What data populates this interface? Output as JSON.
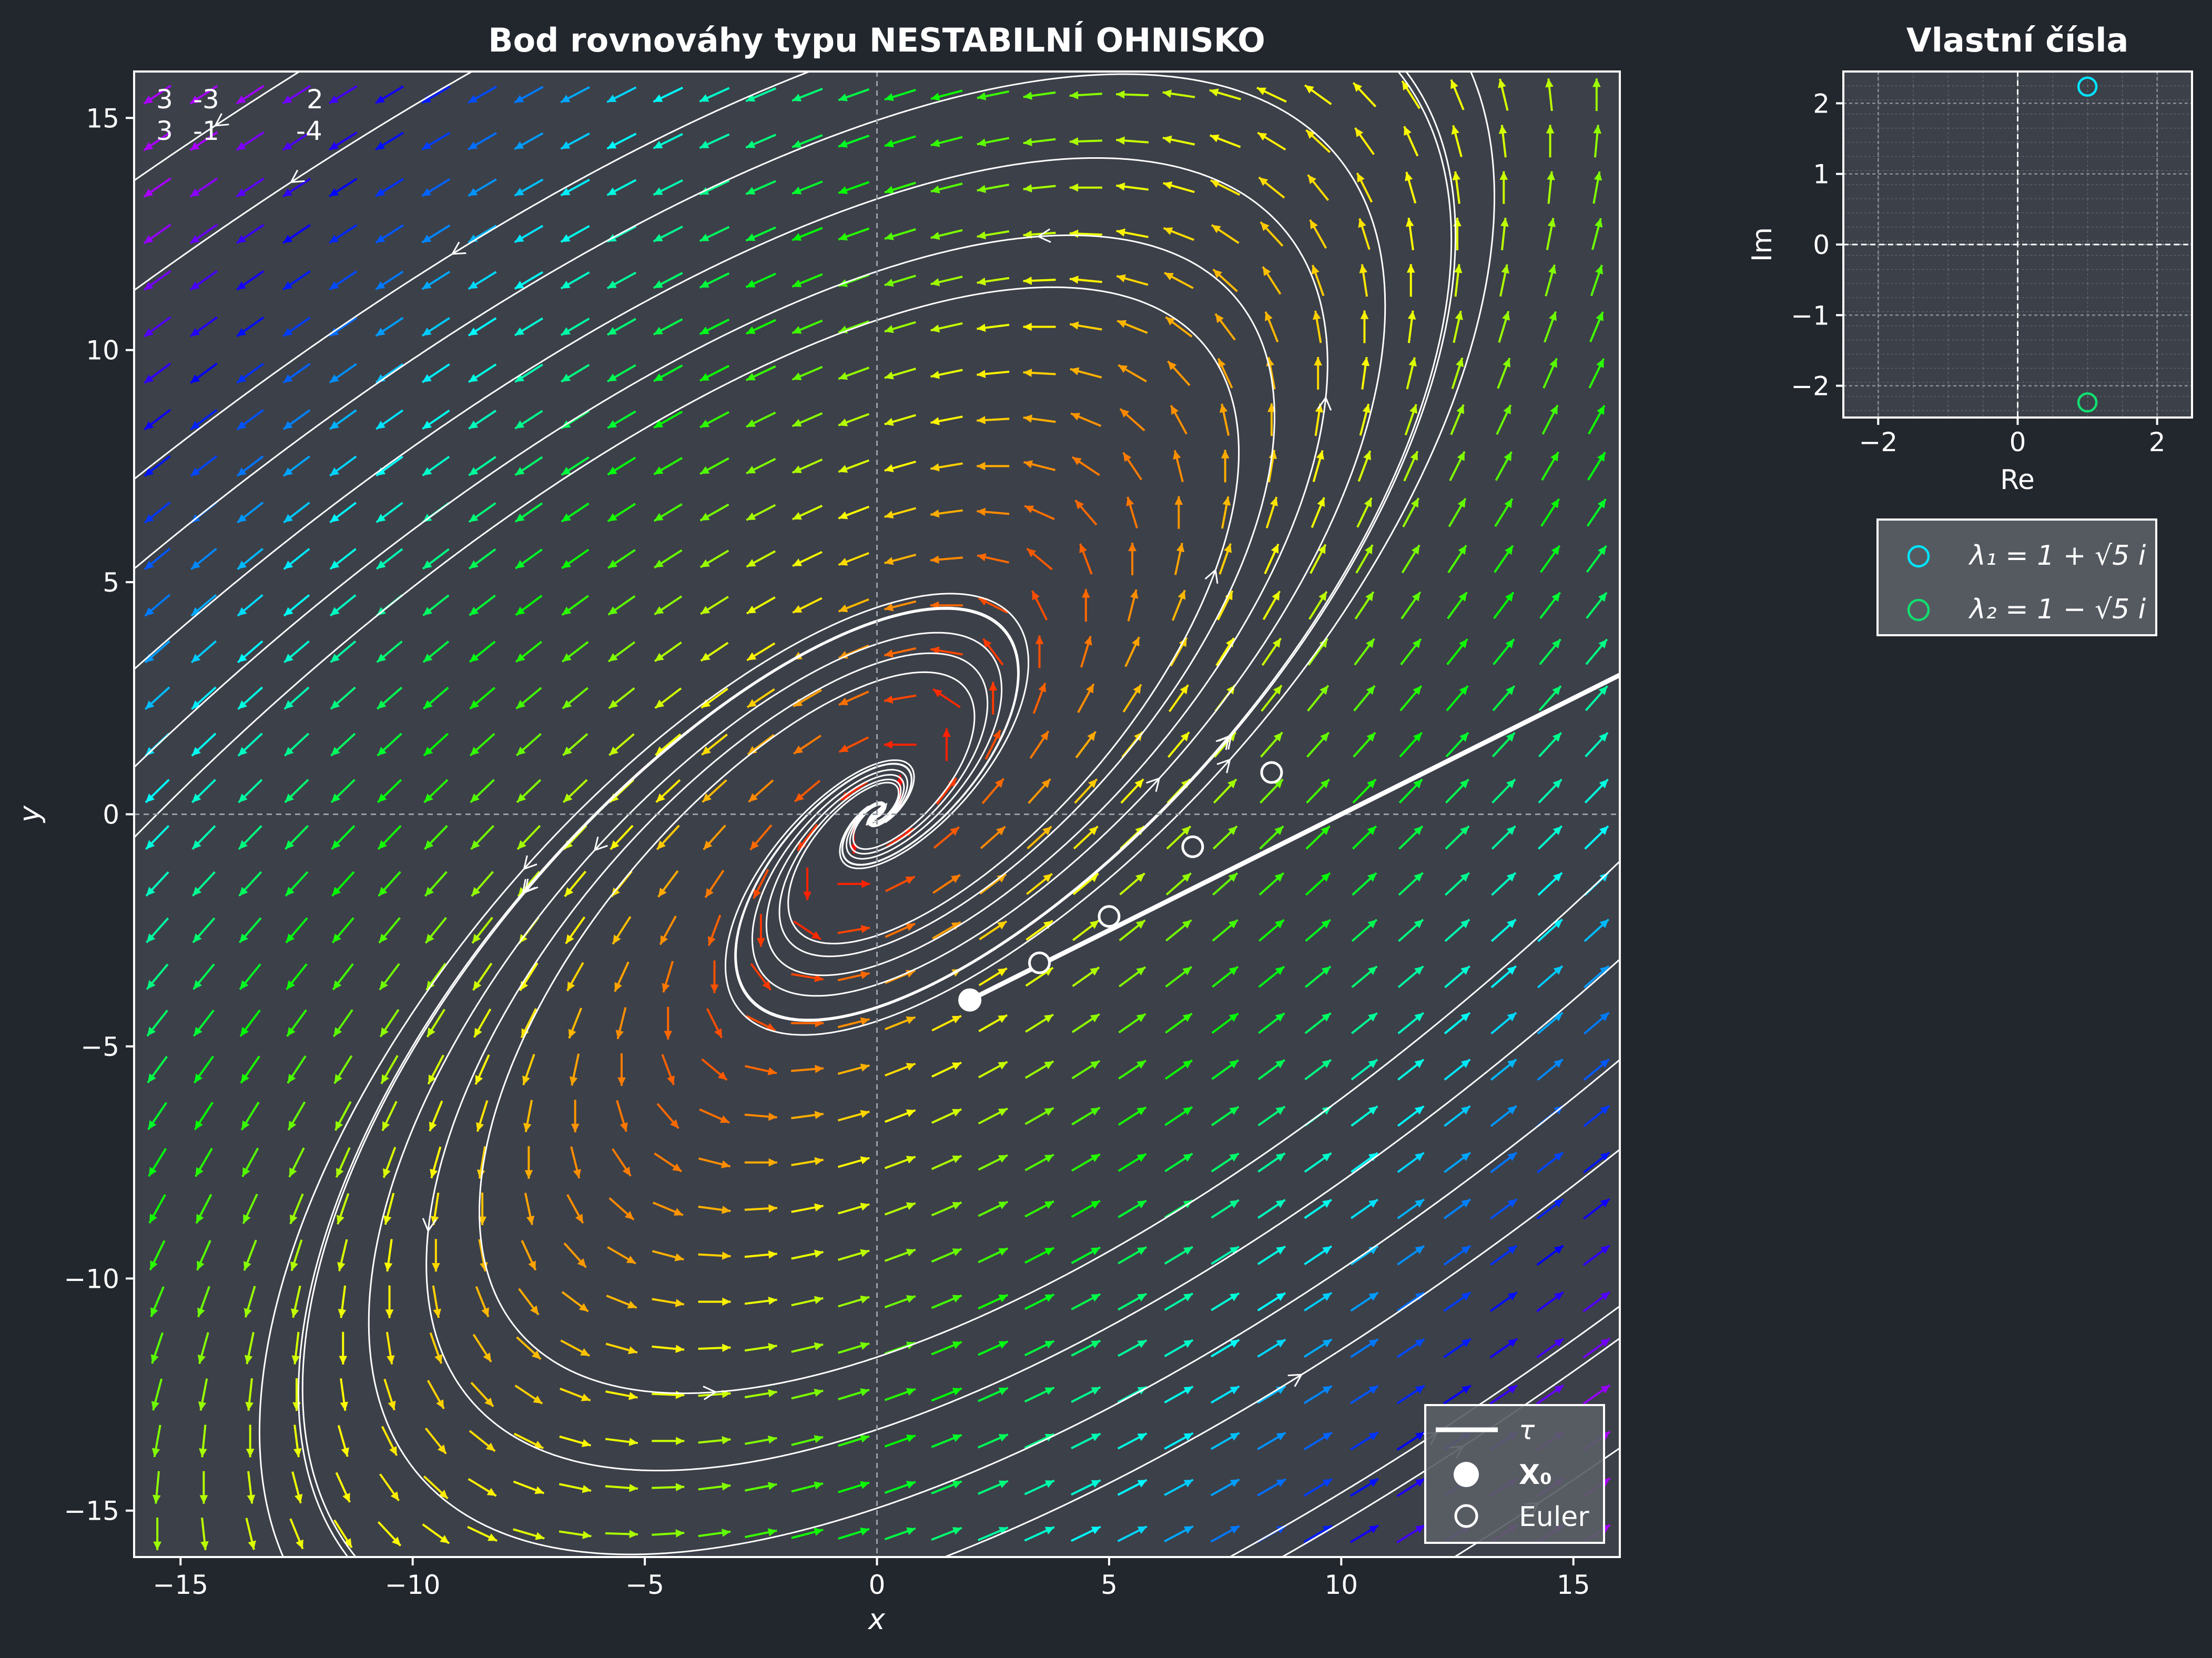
{
  "colors": {
    "figure_bg": "#22262d",
    "plot_bg": "#3c4049",
    "frame": "#ffffff",
    "text": "#ffffff",
    "streamline": "#ffffff",
    "legend_bg": "#5a5e66",
    "eig1": "#00e5ff",
    "eig2": "#10e070"
  },
  "matrix": {
    "row1": [
      "3",
      "-3",
      "2"
    ],
    "row2": [
      "3",
      "-1",
      "-4"
    ]
  },
  "chart_data": [
    {
      "type": "phase-portrait",
      "title": "Bod rovnováhy typu NESTABILNÍ OHNISKO",
      "xlabel": "x",
      "ylabel": "y",
      "xlim": [
        -16,
        16
      ],
      "ylim": [
        -16,
        16
      ],
      "xticks": [
        -15,
        -10,
        -5,
        0,
        5,
        10,
        15
      ],
      "yticks": [
        -15,
        -10,
        -5,
        0,
        5,
        10,
        15
      ],
      "xtick_labels": [
        "−15",
        "−10",
        "−5",
        "0",
        "5",
        "10",
        "15"
      ],
      "ytick_labels": [
        "−15",
        "−10",
        "−5",
        "0",
        "5",
        "10",
        "15"
      ],
      "system": {
        "A": [
          [
            3,
            -3
          ],
          [
            3,
            -1
          ]
        ]
      },
      "equilibrium": [
        0,
        0
      ],
      "x0": [
        2,
        -4
      ],
      "tangent_direction": [
        1,
        0.5
      ],
      "euler_points": [
        [
          2,
          -4
        ],
        [
          3.5,
          -3.2
        ],
        [
          5.0,
          -2.2
        ],
        [
          6.8,
          -0.7
        ],
        [
          8.5,
          0.9
        ]
      ],
      "legend": [
        "τ",
        "X₀",
        "Euler"
      ],
      "legend_position": "lower-right",
      "grid": false
    },
    {
      "type": "scatter",
      "title": "Vlastní čísla",
      "xlabel": "Re",
      "ylabel": "Im",
      "xlim": [
        -2.5,
        2.5
      ],
      "ylim": [
        -2.45,
        2.45
      ],
      "xticks": [
        -2,
        0,
        2
      ],
      "yticks": [
        -2,
        -1,
        0,
        1,
        2
      ],
      "xtick_labels": [
        "−2",
        "0",
        "2"
      ],
      "ytick_labels": [
        "−2",
        "−1",
        "0",
        "1",
        "2"
      ],
      "points": [
        [
          1,
          2.236
        ],
        [
          1,
          -2.236
        ]
      ],
      "legend": [
        "λ₁ = 1 + √5 i",
        "λ₂ = 1 − √5 i"
      ],
      "legend_position": "below",
      "grid": true
    }
  ]
}
